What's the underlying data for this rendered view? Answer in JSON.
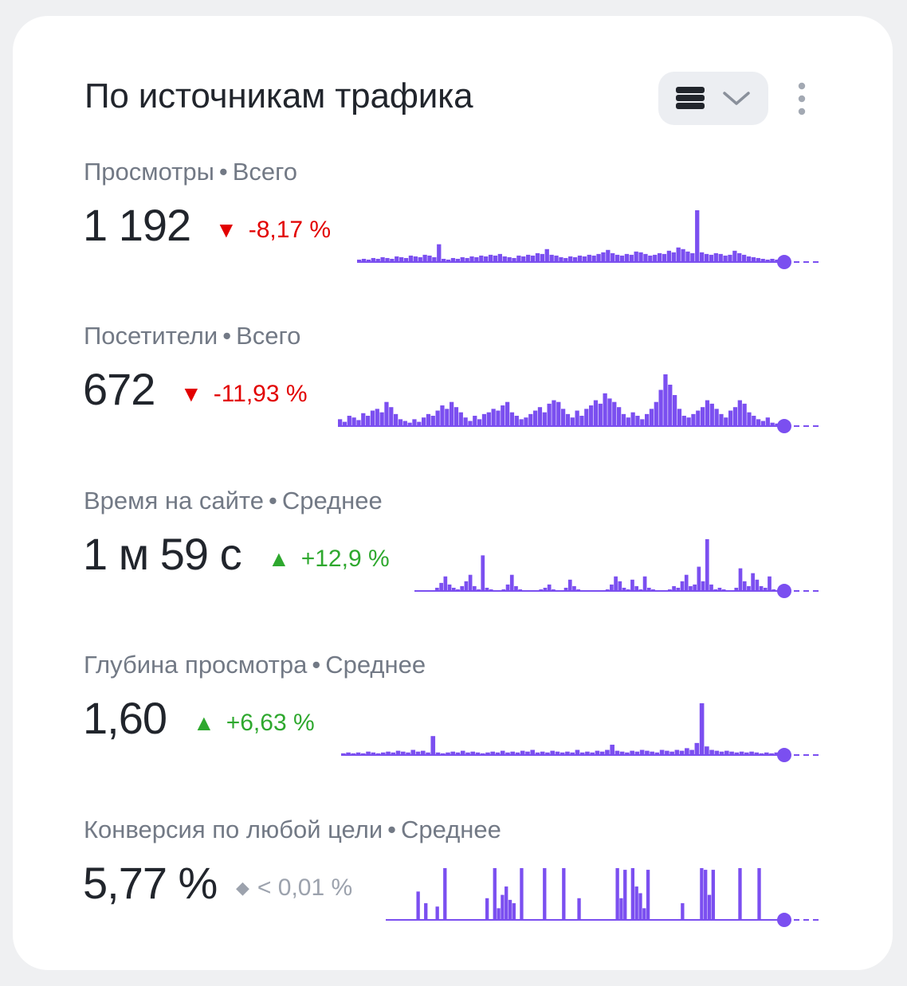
{
  "header": {
    "title": "По источникам трафика",
    "view_icon": "stack-icon",
    "dropdown_icon": "chevron-down-icon",
    "menu_icon": "more-vertical-icon"
  },
  "colors": {
    "spark": "#7b4ff0",
    "down": "#e20000",
    "up": "#2ea82e",
    "neutral": "#9ca2ad"
  },
  "metrics": [
    {
      "name": "Просмотры",
      "aggregation": "Всего",
      "value": "1 192",
      "delta": "-8,17 %",
      "trend": "down",
      "trend_symbol": "▼",
      "spark": [
        3,
        4,
        3,
        5,
        4,
        6,
        5,
        4,
        7,
        6,
        5,
        8,
        7,
        6,
        9,
        8,
        6,
        22,
        4,
        3,
        5,
        4,
        6,
        5,
        7,
        6,
        8,
        7,
        9,
        8,
        10,
        7,
        6,
        5,
        8,
        7,
        9,
        8,
        11,
        10,
        16,
        9,
        8,
        6,
        5,
        7,
        6,
        8,
        7,
        9,
        8,
        10,
        12,
        15,
        11,
        9,
        8,
        10,
        9,
        13,
        12,
        10,
        8,
        9,
        11,
        10,
        14,
        12,
        18,
        16,
        13,
        11,
        64,
        12,
        10,
        9,
        11,
        10,
        8,
        9,
        14,
        11,
        9,
        7,
        6,
        5,
        4,
        3,
        4,
        3,
        2
      ]
    },
    {
      "name": "Посетители",
      "aggregation": "Всего",
      "value": "672",
      "delta": "-11,93 %",
      "trend": "down",
      "trend_symbol": "▼",
      "spark": [
        8,
        5,
        12,
        10,
        7,
        15,
        12,
        18,
        20,
        16,
        28,
        22,
        14,
        8,
        6,
        4,
        8,
        5,
        10,
        14,
        12,
        18,
        24,
        20,
        28,
        22,
        16,
        10,
        6,
        12,
        8,
        14,
        16,
        20,
        18,
        24,
        28,
        16,
        12,
        8,
        10,
        14,
        18,
        22,
        16,
        26,
        30,
        28,
        20,
        14,
        10,
        18,
        12,
        20,
        24,
        30,
        26,
        38,
        32,
        28,
        22,
        14,
        10,
        16,
        12,
        8,
        14,
        20,
        28,
        42,
        60,
        48,
        36,
        20,
        12,
        10,
        14,
        18,
        22,
        30,
        26,
        20,
        14,
        10,
        18,
        22,
        30,
        26,
        16,
        12,
        8,
        6,
        10,
        4,
        3,
        2
      ]
    },
    {
      "name": "Время на сайте",
      "aggregation": "Среднее",
      "value": "1 м 59 с",
      "delta": "+12,9 %",
      "trend": "up",
      "trend_symbol": "▲",
      "spark": [
        0,
        0,
        0,
        0,
        0,
        4,
        10,
        18,
        8,
        4,
        2,
        6,
        12,
        20,
        6,
        2,
        44,
        4,
        2,
        0,
        0,
        2,
        8,
        20,
        6,
        2,
        0,
        0,
        0,
        0,
        2,
        4,
        8,
        2,
        0,
        0,
        4,
        14,
        6,
        2,
        0,
        0,
        0,
        0,
        0,
        0,
        2,
        8,
        18,
        12,
        4,
        2,
        14,
        6,
        2,
        18,
        4,
        2,
        0,
        0,
        0,
        2,
        6,
        4,
        12,
        20,
        6,
        8,
        30,
        12,
        64,
        8,
        2,
        4,
        2,
        0,
        0,
        4,
        28,
        12,
        6,
        22,
        14,
        6,
        4,
        18,
        2,
        0,
        0
      ]
    },
    {
      "name": "Глубина просмотра",
      "aggregation": "Среднее",
      "value": "1,60",
      "delta": "+6,63 %",
      "trend": "up",
      "trend_symbol": "▲",
      "spark": [
        2,
        3,
        2,
        3,
        2,
        4,
        3,
        2,
        3,
        4,
        3,
        5,
        4,
        3,
        6,
        4,
        5,
        3,
        22,
        3,
        2,
        3,
        4,
        3,
        5,
        3,
        4,
        3,
        2,
        3,
        4,
        3,
        5,
        3,
        4,
        3,
        5,
        4,
        6,
        3,
        4,
        3,
        5,
        4,
        3,
        4,
        3,
        6,
        3,
        4,
        3,
        5,
        4,
        6,
        12,
        5,
        4,
        3,
        5,
        4,
        6,
        5,
        4,
        3,
        6,
        5,
        4,
        6,
        5,
        8,
        6,
        14,
        60,
        10,
        6,
        5,
        4,
        5,
        4,
        3,
        4,
        3,
        4,
        3,
        2,
        3,
        2,
        3,
        2
      ]
    },
    {
      "name": "Конверсия по любой цели",
      "aggregation": "Среднее",
      "value": "5,77 %",
      "delta": "< 0,01 %",
      "trend": "neutral",
      "trend_symbol": "◆",
      "spark": [
        0,
        0,
        0,
        0,
        0,
        0,
        0,
        0,
        34,
        0,
        20,
        0,
        0,
        16,
        0,
        62,
        0,
        0,
        0,
        0,
        0,
        0,
        0,
        0,
        0,
        0,
        26,
        0,
        62,
        14,
        30,
        40,
        24,
        20,
        0,
        62,
        0,
        0,
        0,
        0,
        0,
        62,
        0,
        0,
        0,
        0,
        62,
        0,
        0,
        0,
        26,
        0,
        0,
        0,
        0,
        0,
        0,
        0,
        0,
        0,
        62,
        26,
        60,
        0,
        62,
        40,
        32,
        14,
        60,
        0,
        0,
        0,
        0,
        0,
        0,
        0,
        0,
        20,
        0,
        0,
        0,
        0,
        62,
        60,
        30,
        60,
        0,
        0,
        0,
        0,
        0,
        0,
        62,
        0,
        0,
        0,
        0,
        62,
        0,
        0,
        0,
        0,
        0,
        0
      ]
    }
  ]
}
